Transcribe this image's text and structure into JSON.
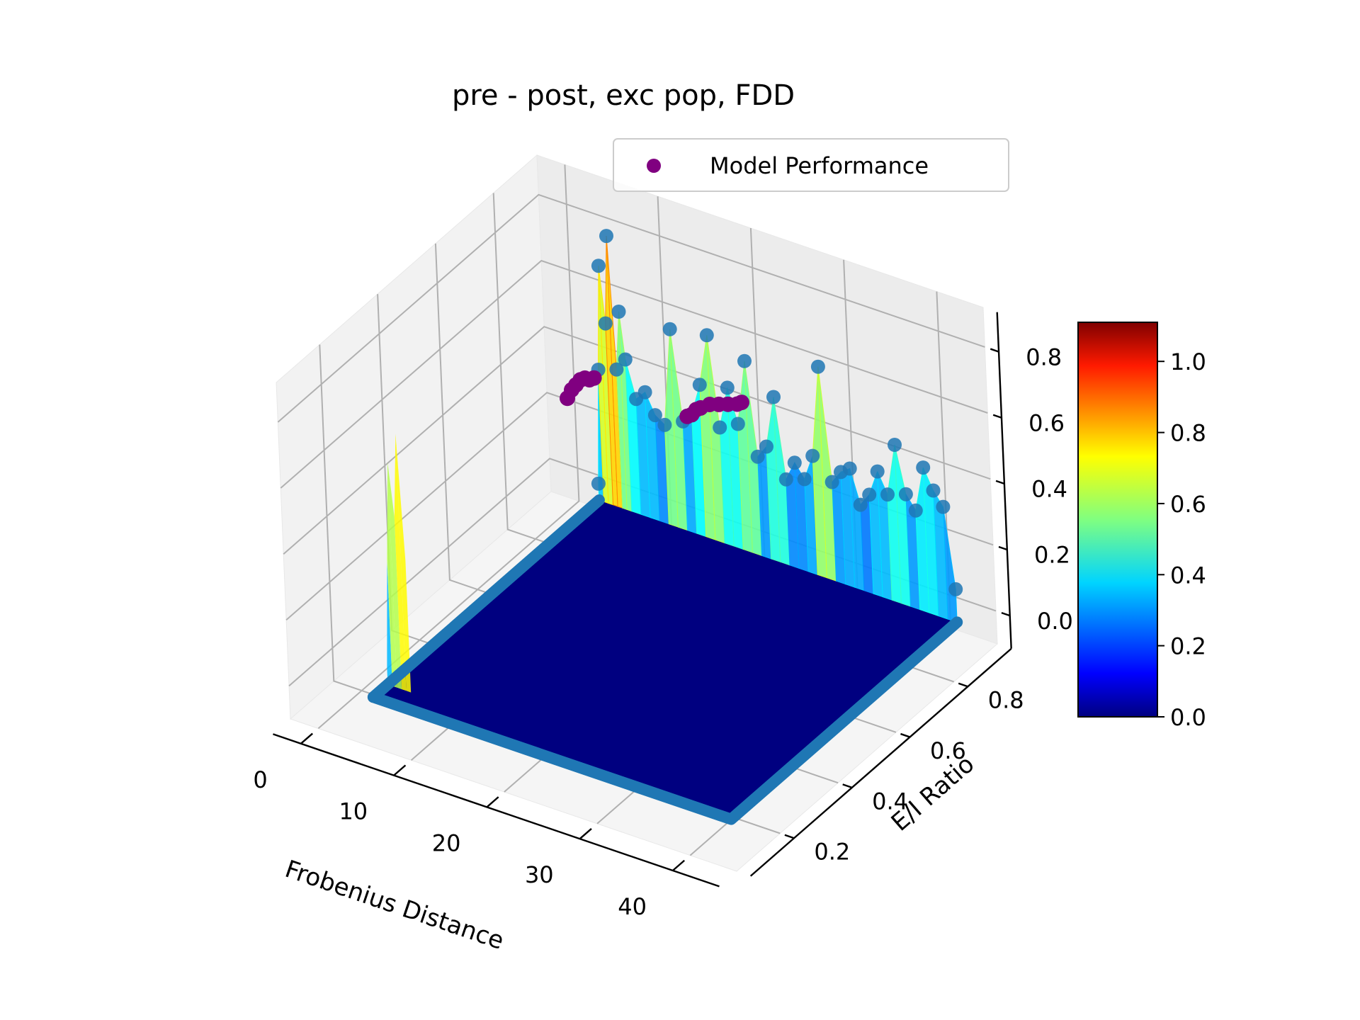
{
  "chart_data": {
    "type": "surface3d",
    "title": "pre - post, exc pop, FDD",
    "xlabel": "Frobenius Distance",
    "ylabel": "E/I Ratio",
    "zlabel": "",
    "xlim": [
      -3,
      45
    ],
    "ylim": [
      0.05,
      0.95
    ],
    "zlim": [
      -0.1,
      0.92
    ],
    "x_ticks": [
      "0",
      "10",
      "20",
      "30",
      "40"
    ],
    "x_tick_values": [
      0,
      10,
      20,
      30,
      40
    ],
    "y_ticks": [
      "0.2",
      "0.4",
      "0.6",
      "0.8"
    ],
    "y_tick_values": [
      0.2,
      0.4,
      0.6,
      0.8
    ],
    "z_ticks": [
      "0.0",
      "0.2",
      "0.4",
      "0.6",
      "0.8"
    ],
    "z_tick_values": [
      0.0,
      0.2,
      0.4,
      0.6,
      0.8
    ],
    "colorbar": {
      "colormap": "jet",
      "range": [
        0.0,
        1.11
      ],
      "ticks": [
        "0.0",
        "0.2",
        "0.4",
        "0.6",
        "0.8",
        "1.0"
      ],
      "tick_values": [
        0.0,
        0.2,
        0.4,
        0.6,
        0.8,
        1.0
      ]
    },
    "legend": {
      "entries": [
        "Model Performance"
      ],
      "position": "top-right",
      "marker_color": "#800080"
    },
    "grid": true,
    "surface_edge_color": "#1f77b4",
    "back_ridge": {
      "y": 0.88,
      "x": [
        4.5,
        5.0,
        5.5,
        6.0,
        6.5,
        7.0,
        7.5,
        8.0,
        9.0,
        10.0,
        11.0,
        12.0,
        13.0,
        14.0,
        15.0,
        16.0,
        17.0,
        18.0,
        19.0,
        20.0,
        21.0,
        22.0,
        23.0,
        24.0,
        25.0,
        26.0,
        27.0,
        28.0,
        29.0,
        30.0,
        31.0,
        32.0,
        33.0,
        34.0,
        35.0,
        36.0,
        37.0,
        38.0,
        39.0,
        40.0,
        41.0,
        42.0,
        43.0
      ],
      "z": [
        0.05,
        0.4,
        0.72,
        0.55,
        0.82,
        0.42,
        0.6,
        0.46,
        0.35,
        0.38,
        0.32,
        0.3,
        0.6,
        0.33,
        0.36,
        0.46,
        0.62,
        0.35,
        0.48,
        0.38,
        0.58,
        0.3,
        0.34,
        0.5,
        0.26,
        0.32,
        0.28,
        0.36,
        0.64,
        0.3,
        0.34,
        0.36,
        0.26,
        0.3,
        0.38,
        0.32,
        0.48,
        0.34,
        0.3,
        0.44,
        0.38,
        0.34,
        0.1
      ]
    },
    "model_performance": {
      "y": 0.88,
      "x": [
        1.5,
        2.0,
        2.5,
        3.0,
        3.5,
        4.0,
        4.5,
        14.5,
        15.0,
        15.5,
        16.0,
        17.0,
        18.0,
        19.0,
        20.0,
        20.5
      ],
      "z": [
        0.28,
        0.31,
        0.33,
        0.35,
        0.36,
        0.36,
        0.37,
        0.35,
        0.36,
        0.38,
        0.39,
        0.41,
        0.42,
        0.43,
        0.44,
        0.45
      ]
    }
  }
}
